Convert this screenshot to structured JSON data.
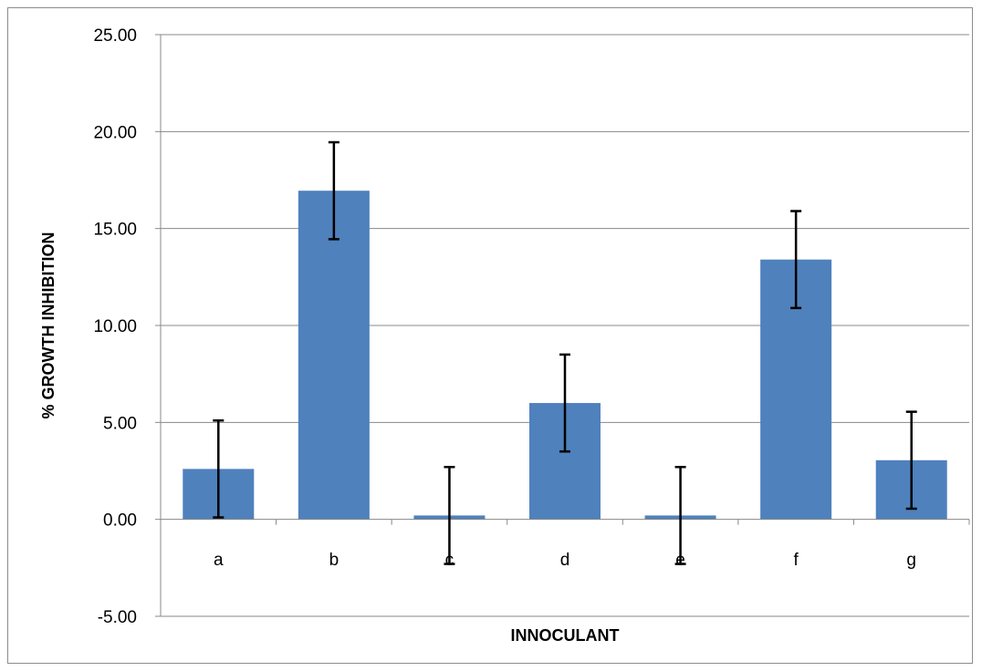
{
  "chart_data": {
    "type": "bar",
    "title": "",
    "xlabel": "INNOCULANT",
    "ylabel": "% GROWTH INHIBITION",
    "categories": [
      "a",
      "b",
      "c",
      "d",
      "e",
      "f",
      "g"
    ],
    "values": [
      2.6,
      16.95,
      0.2,
      6.0,
      0.2,
      13.4,
      3.05
    ],
    "error": [
      2.5,
      2.5,
      2.5,
      2.5,
      2.5,
      2.5,
      2.5
    ],
    "ylim": [
      -5,
      25
    ],
    "yticks": [
      "-5.00",
      "0.00",
      "5.00",
      "10.00",
      "15.00",
      "20.00",
      "25.00"
    ],
    "ytick_values": [
      -5,
      0,
      5,
      10,
      15,
      20,
      25
    ],
    "grid": true,
    "legend": "none",
    "bar_color": "#4f81bd",
    "grid_color": "#888888",
    "error_bar_color": "#000000"
  }
}
